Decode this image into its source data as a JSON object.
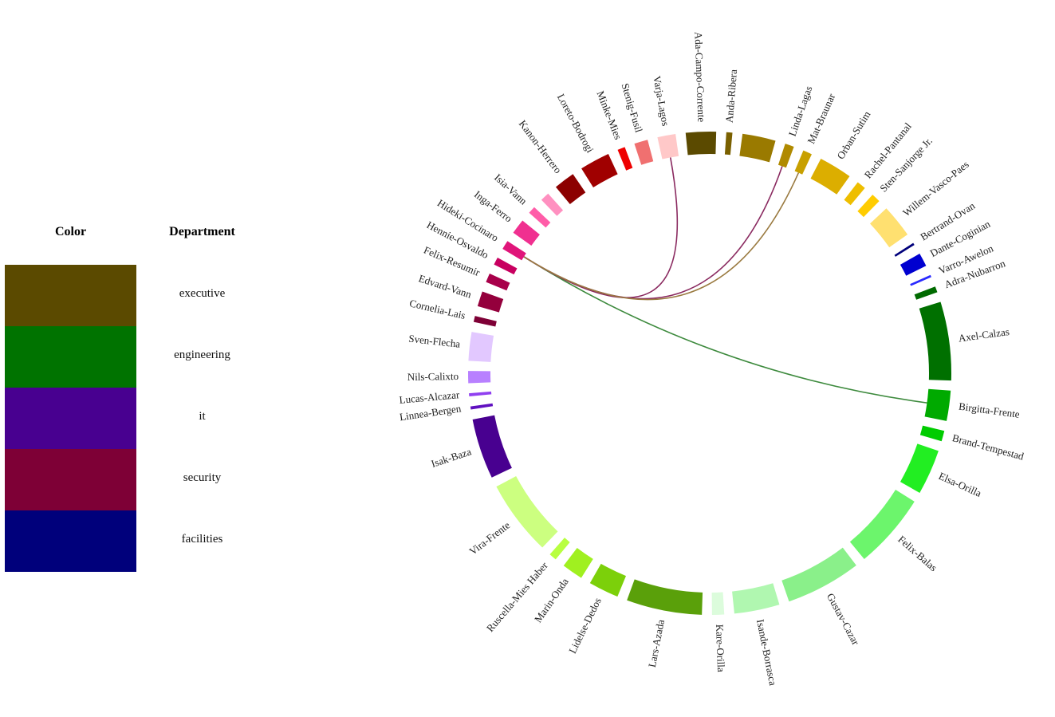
{
  "legend": {
    "header_color": "Color",
    "header_department": "Department",
    "items": [
      {
        "department": "executive",
        "color": "#5b4a00"
      },
      {
        "department": "engineering",
        "color": "#007300"
      },
      {
        "department": "it",
        "color": "#480090"
      },
      {
        "department": "security",
        "color": "#7e0036"
      },
      {
        "department": "facilities",
        "color": "#00007b"
      }
    ]
  },
  "chord": {
    "nodes": [
      {
        "name": "Ada-Campo-Corrente",
        "color": "#5b4a00",
        "size": 2.0
      },
      {
        "name": "Anda-Ribera",
        "color": "#7a6000",
        "size": 0.4
      },
      {
        "name": "",
        "color": "#9a7a00",
        "size": 2.2
      },
      {
        "name": "Linda-Lagas",
        "color": "#b08a00",
        "size": 0.6
      },
      {
        "name": "Mat-Braunar",
        "color": "#c8a000",
        "size": 0.6
      },
      {
        "name": "Orban-Sutim",
        "color": "#dcae00",
        "size": 2.2
      },
      {
        "name": "Rachel-Pantanal",
        "color": "#eebe00",
        "size": 0.6
      },
      {
        "name": "Sten-Sanjorge Jr.",
        "color": "#ffcc00",
        "size": 0.6
      },
      {
        "name": "Willem-Vasco-Paes",
        "color": "#ffe070",
        "size": 2.2
      },
      {
        "name": "Bertrand-Ovan",
        "color": "#00007b",
        "size": 0.15
      },
      {
        "name": "Dante-Coginian",
        "color": "#0000d0",
        "size": 0.9
      },
      {
        "name": "Varro-Awelon",
        "color": "#2a2aff",
        "size": 0.15
      },
      {
        "name": "Adra-Nubarron",
        "color": "#006a00",
        "size": 0.4
      },
      {
        "name": "Axel-Calzas",
        "color": "#007000",
        "size": 5.2
      },
      {
        "name": "Birgitta-Frente",
        "color": "#00aa00",
        "size": 2.0
      },
      {
        "name": "Brand-Tempestad",
        "color": "#00cc00",
        "size": 0.7
      },
      {
        "name": "Elsa-Orilla",
        "color": "#22ee22",
        "size": 3.0
      },
      {
        "name": "Felix-Balas",
        "color": "#6cf56c",
        "size": 5.0
      },
      {
        "name": "Gustav-Cazar",
        "color": "#8af08a",
        "size": 5.0
      },
      {
        "name": "Isande-Borrasca",
        "color": "#b0f7b0",
        "size": 3.0
      },
      {
        "name": "Kare-Orilla",
        "color": "#dcfcdc",
        "size": 0.8
      },
      {
        "name": "Lars-Azada",
        "color": "#5aa00a",
        "size": 5.0
      },
      {
        "name": "Lidelse-Dedos",
        "color": "#7cd00a",
        "size": 2.0
      },
      {
        "name": "Marin-Onda",
        "color": "#a0f020",
        "size": 1.4
      },
      {
        "name": "Ruscella-Mies Haber",
        "color": "#b8ff40",
        "size": 0.5
      },
      {
        "name": "Vira-Frente",
        "color": "#ccff80",
        "size": 5.0
      },
      {
        "name": "Isak-Baza",
        "color": "#480090",
        "size": 4.0
      },
      {
        "name": "Linnea-Bergen",
        "color": "#6010c0",
        "size": 0.2
      },
      {
        "name": "Lucas-Alcazar",
        "color": "#9040f0",
        "size": 0.2
      },
      {
        "name": "Nils-Calixto",
        "color": "#b880ff",
        "size": 0.8
      },
      {
        "name": "Sven-Flecha",
        "color": "#e2c8ff",
        "size": 1.9
      },
      {
        "name": "Cornelia-Lais",
        "color": "#7e0036",
        "size": 0.4
      },
      {
        "name": "Edvard-Vann",
        "color": "#94003c",
        "size": 1.0
      },
      {
        "name": "Felix-Resumir",
        "color": "#a8004a",
        "size": 0.6
      },
      {
        "name": "Hennie-Osvaldo",
        "color": "#c80060",
        "size": 0.5
      },
      {
        "name": "Hideki-Cocinaro",
        "color": "#e0157a",
        "size": 0.6
      },
      {
        "name": "Inga-Ferro",
        "color": "#f03090",
        "size": 1.0
      },
      {
        "name": "Isia-Vann",
        "color": "#ff5ca8",
        "size": 0.5
      },
      {
        "name": "",
        "color": "#ff90c0",
        "size": 0.6
      },
      {
        "name": "Kanon-Herrero",
        "color": "#8c0000",
        "size": 1.4
      },
      {
        "name": "Loreto-Bodrogi",
        "color": "#a00000",
        "size": 2.0
      },
      {
        "name": "Minke-Mies",
        "color": "#ee0000",
        "size": 0.5
      },
      {
        "name": "Stenig-Fusil",
        "color": "#f07070",
        "size": 0.9
      },
      {
        "name": "Varja-Lagos",
        "color": "#ffc8c8",
        "size": 1.2
      }
    ],
    "links": [
      {
        "source": "Hideki-Cocinaro",
        "target": "Birgitta-Frente",
        "color": "#3d8a3d"
      },
      {
        "source": "Hideki-Cocinaro",
        "target": "Varja-Lagos",
        "color": "#8a2a60"
      },
      {
        "source": "Hideki-Cocinaro",
        "target": "Linda-Lagas",
        "color": "#8a2a60"
      },
      {
        "source": "Hideki-Cocinaro",
        "target": "Mat-Braunar",
        "color": "#9a7a40"
      }
    ]
  }
}
